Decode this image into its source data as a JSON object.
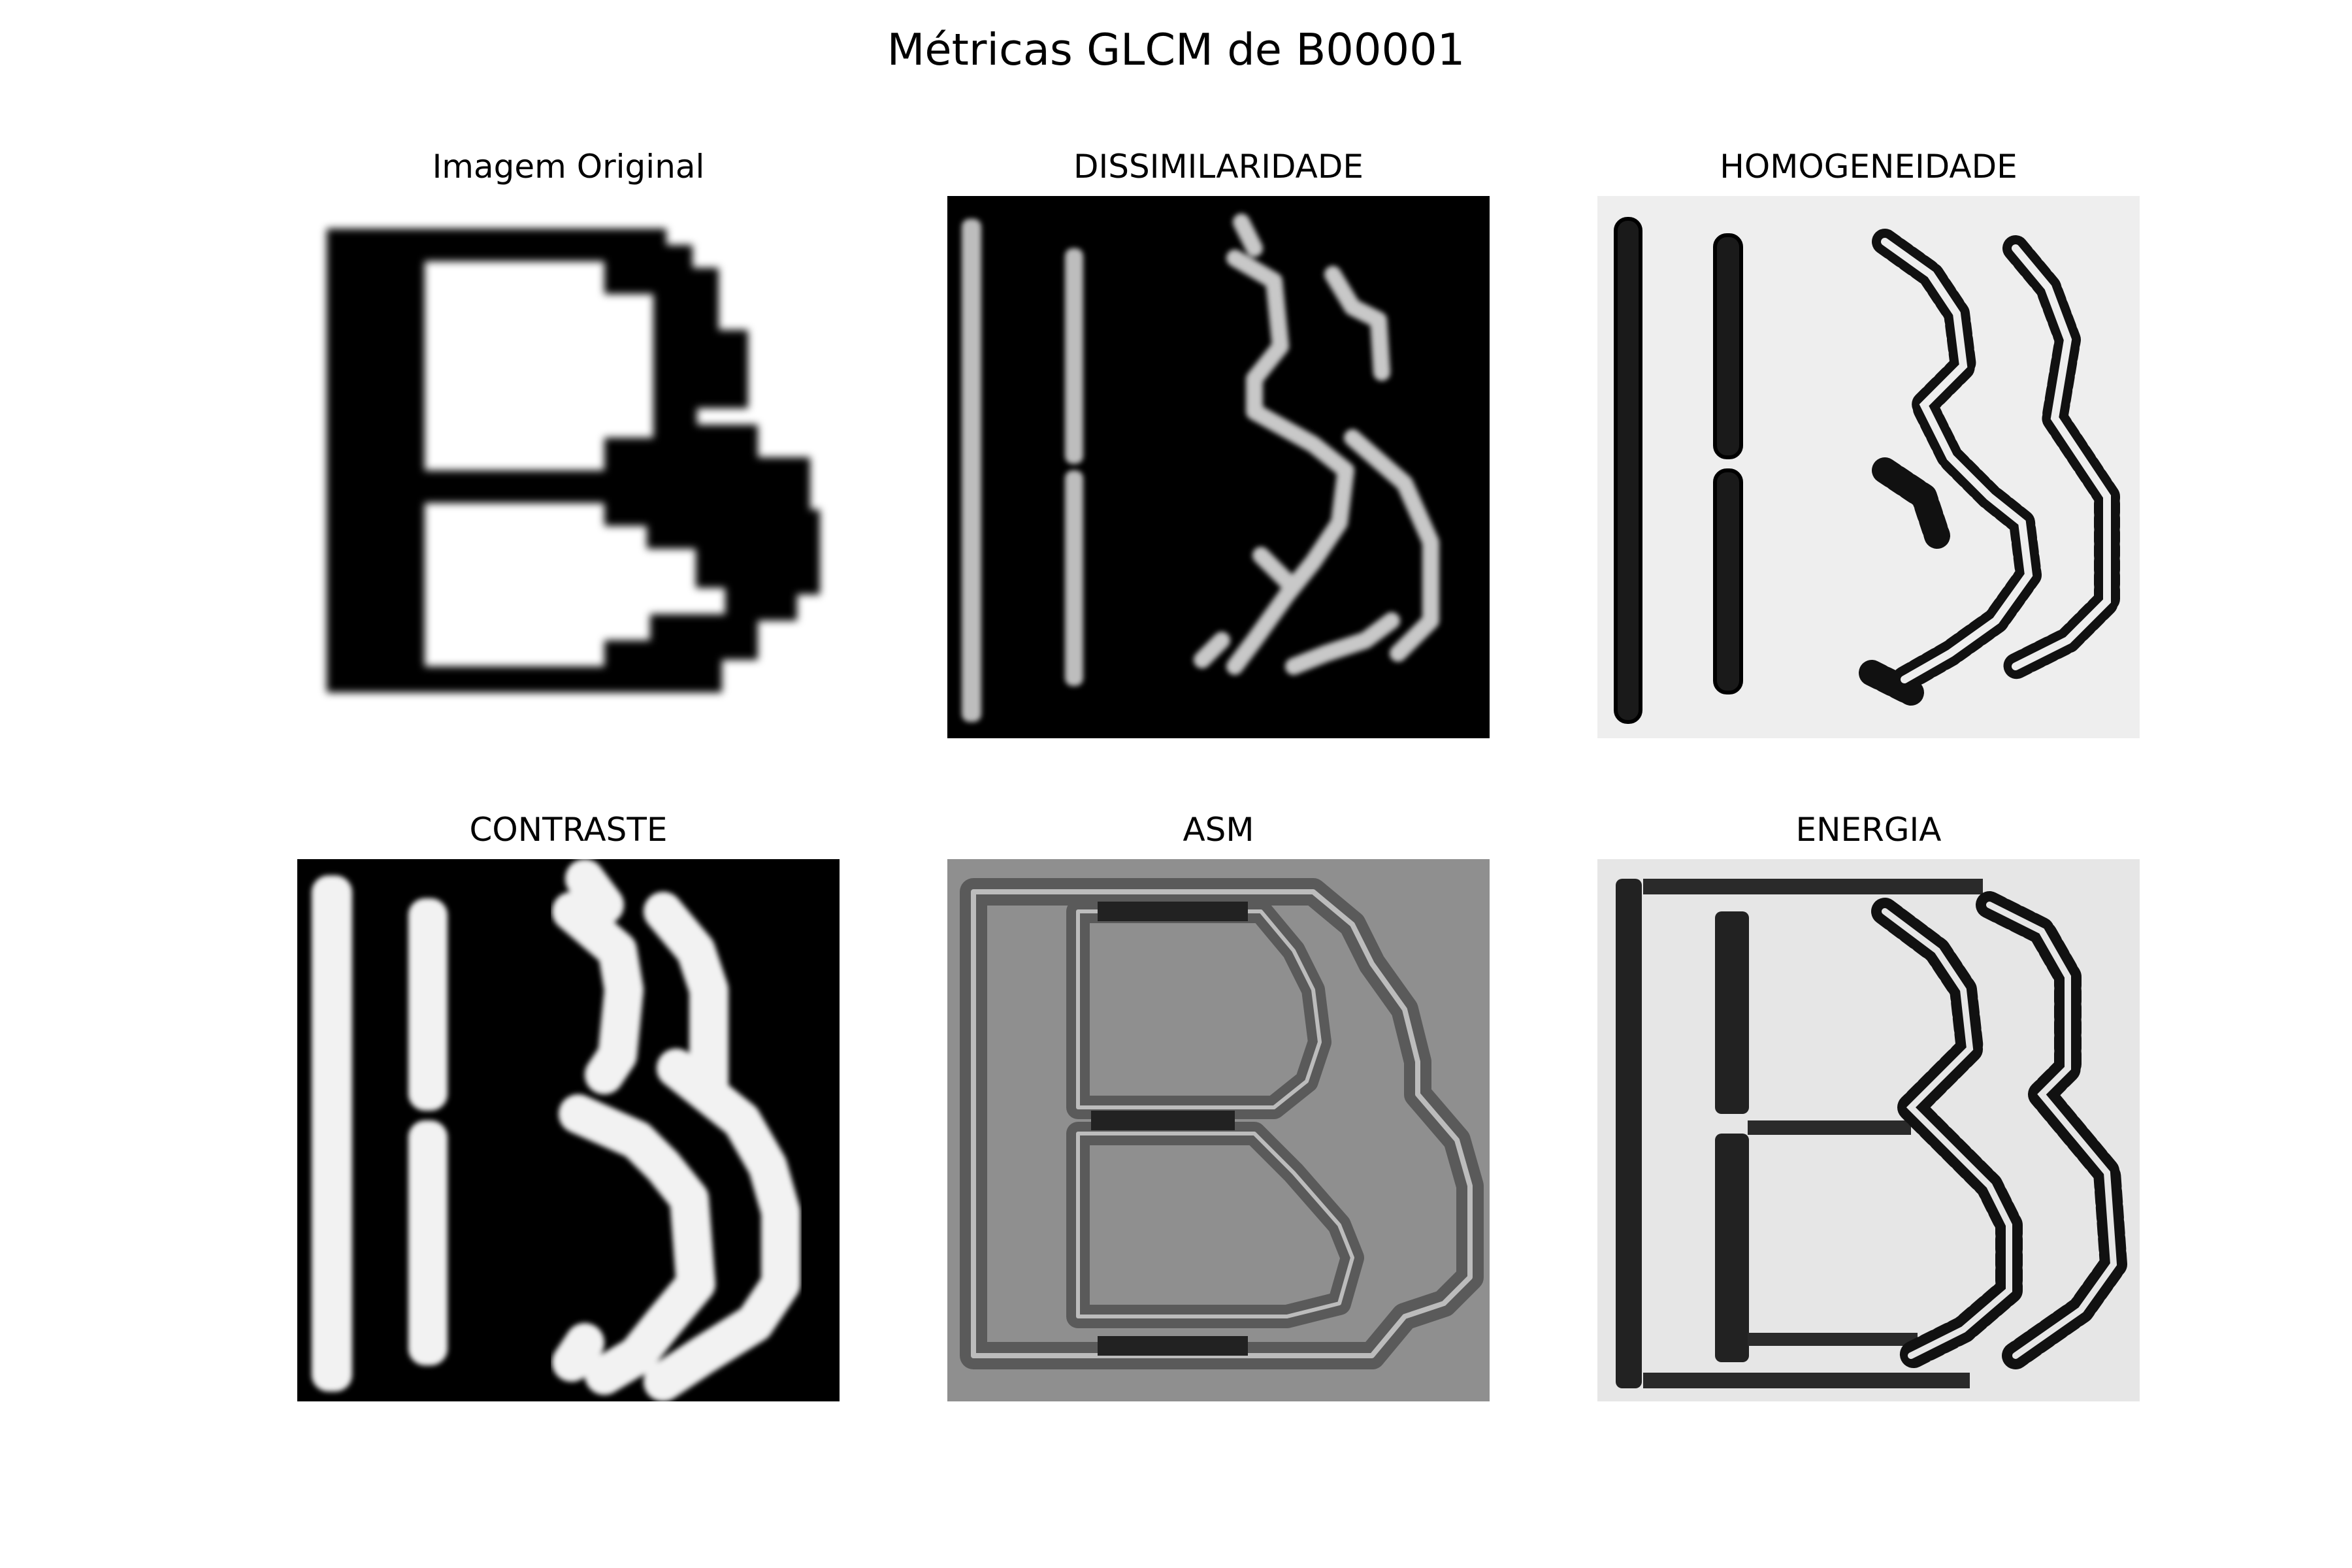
{
  "figure": {
    "title": "Métricas GLCM de B00001"
  },
  "panels": [
    {
      "title": "Imagem Original",
      "kind": "original",
      "background": "#ffffff"
    },
    {
      "title": "DISSIMILARIDADE",
      "kind": "dissimilarity",
      "background": "#000000"
    },
    {
      "title": "HOMOGENEIDADE",
      "kind": "homogeneity",
      "background": "#eeeeee"
    },
    {
      "title": "CONTRASTE",
      "kind": "contrast",
      "background": "#000000"
    },
    {
      "title": "ASM",
      "kind": "asm",
      "background": "#8f8f8f"
    },
    {
      "title": "ENERGIA",
      "kind": "energy",
      "background": "#e6e6e6"
    }
  ],
  "colors": {
    "ink": "#000000",
    "bright": "#f2f2f2",
    "mid_gray": "#bdbdbd",
    "dark_band": "#222222"
  }
}
